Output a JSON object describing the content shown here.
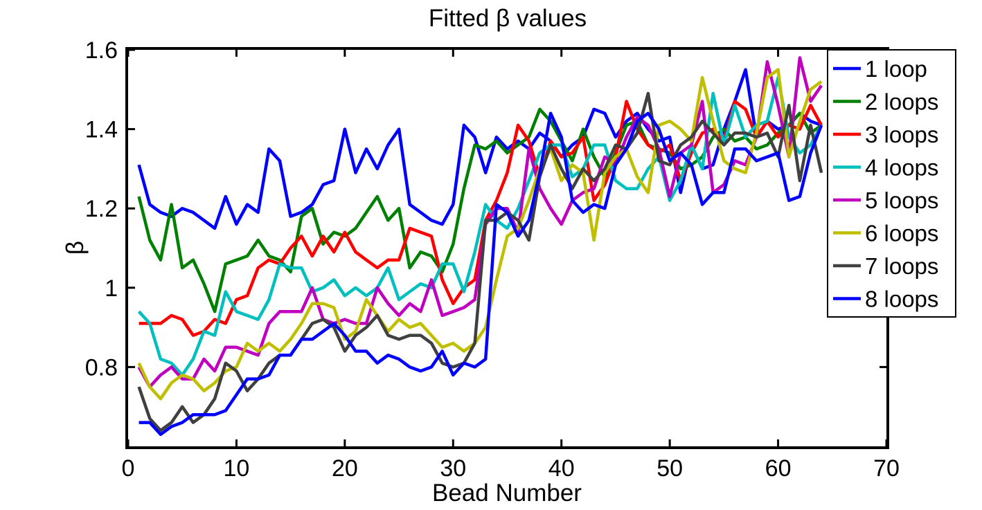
{
  "chart_data": {
    "type": "line",
    "title": "Fitted β values",
    "xlabel": "Bead Number",
    "ylabel": "β",
    "xlim": [
      0,
      70
    ],
    "ylim": [
      0.6,
      1.6
    ],
    "xticks": [
      0,
      10,
      20,
      30,
      40,
      50,
      60,
      70
    ],
    "yticks": [
      0.8,
      1,
      1.2,
      1.4,
      1.6
    ],
    "ytick_labels": [
      "0.8",
      "1",
      "1.2",
      "1.4",
      "1.6"
    ],
    "grid": false,
    "legend_position": "top-right",
    "x": [
      1,
      2,
      3,
      4,
      5,
      6,
      7,
      8,
      9,
      10,
      11,
      12,
      13,
      14,
      15,
      16,
      17,
      18,
      19,
      20,
      21,
      22,
      23,
      24,
      25,
      26,
      27,
      28,
      29,
      30,
      31,
      32,
      33,
      34,
      35,
      36,
      37,
      38,
      39,
      40,
      41,
      42,
      43,
      44,
      45,
      46,
      47,
      48,
      49,
      50,
      51,
      52,
      53,
      54,
      55,
      56,
      57,
      58,
      59,
      60,
      61,
      62,
      63,
      64
    ],
    "series": [
      {
        "name": "1 loop",
        "color": "#0000ff",
        "values": [
          1.31,
          1.21,
          1.19,
          1.18,
          1.2,
          1.19,
          1.17,
          1.15,
          1.23,
          1.16,
          1.21,
          1.19,
          1.35,
          1.32,
          1.18,
          1.19,
          1.21,
          1.26,
          1.27,
          1.4,
          1.29,
          1.35,
          1.3,
          1.36,
          1.4,
          1.21,
          1.19,
          1.17,
          1.16,
          1.21,
          1.41,
          1.38,
          1.29,
          1.38,
          1.35,
          1.37,
          1.35,
          1.39,
          1.37,
          1.33,
          1.36,
          1.38,
          1.45,
          1.44,
          1.38,
          1.42,
          1.44,
          1.4,
          1.37,
          1.38,
          1.24,
          1.36,
          1.3,
          1.31,
          1.4,
          1.47,
          1.55,
          1.38,
          1.42,
          1.4,
          1.41,
          1.44,
          1.42,
          1.41
        ]
      },
      {
        "name": "2 loops",
        "color": "#008000",
        "values": [
          1.23,
          1.12,
          1.07,
          1.21,
          1.05,
          1.07,
          1.01,
          0.94,
          1.06,
          1.07,
          1.08,
          1.12,
          1.08,
          1.07,
          1.04,
          1.18,
          1.2,
          1.11,
          1.14,
          1.13,
          1.15,
          1.19,
          1.23,
          1.17,
          1.2,
          1.05,
          1.09,
          1.08,
          1.04,
          1.11,
          1.25,
          1.36,
          1.35,
          1.37,
          1.34,
          1.36,
          1.38,
          1.45,
          1.42,
          1.37,
          1.32,
          1.4,
          1.33,
          1.28,
          1.34,
          1.41,
          1.42,
          1.36,
          1.35,
          1.34,
          1.3,
          1.31,
          1.33,
          1.38,
          1.4,
          1.37,
          1.38,
          1.35,
          1.36,
          1.39,
          1.41,
          1.44,
          1.39,
          1.41
        ]
      },
      {
        "name": "3 loops",
        "color": "#ff0000",
        "values": [
          0.91,
          0.91,
          0.91,
          0.93,
          0.92,
          0.88,
          0.89,
          0.92,
          0.91,
          0.97,
          0.98,
          1.05,
          1.07,
          1.06,
          1.1,
          1.13,
          1.08,
          1.13,
          1.09,
          1.14,
          1.09,
          1.07,
          1.05,
          1.07,
          1.07,
          1.15,
          1.14,
          1.13,
          1.02,
          0.96,
          1.0,
          1.02,
          1.17,
          1.22,
          1.29,
          1.41,
          1.37,
          1.28,
          1.37,
          1.33,
          1.34,
          1.38,
          1.22,
          1.26,
          1.33,
          1.47,
          1.4,
          1.36,
          1.34,
          1.36,
          1.27,
          1.34,
          1.39,
          1.4,
          1.37,
          1.47,
          1.45,
          1.38,
          1.42,
          1.38,
          1.41,
          1.4,
          1.46,
          1.41
        ]
      },
      {
        "name": "4 loops",
        "color": "#00bfbf",
        "values": [
          0.94,
          0.91,
          0.82,
          0.81,
          0.78,
          0.82,
          0.89,
          0.88,
          0.99,
          0.94,
          0.93,
          0.92,
          0.97,
          1.06,
          1.05,
          1.05,
          0.99,
          1.0,
          1.02,
          0.98,
          1.0,
          0.98,
          1.0,
          1.05,
          0.97,
          0.99,
          1.01,
          1.0,
          1.06,
          1.06,
          0.99,
          1.09,
          1.21,
          1.17,
          1.15,
          1.2,
          1.27,
          1.34,
          1.36,
          1.36,
          1.28,
          1.3,
          1.36,
          1.36,
          1.27,
          1.25,
          1.25,
          1.3,
          1.33,
          1.22,
          1.27,
          1.36,
          1.3,
          1.49,
          1.36,
          1.46,
          1.38,
          1.41,
          1.42,
          1.53,
          1.38,
          1.34,
          1.36,
          1.41
        ]
      },
      {
        "name": "5 loops",
        "color": "#bf00bf",
        "values": [
          0.8,
          0.75,
          0.78,
          0.8,
          0.77,
          0.77,
          0.82,
          0.79,
          0.85,
          0.85,
          0.84,
          0.83,
          0.91,
          0.94,
          0.94,
          0.94,
          1.0,
          0.92,
          0.91,
          0.92,
          0.91,
          0.91,
          1.0,
          0.96,
          0.93,
          0.96,
          0.94,
          1.02,
          0.93,
          0.94,
          0.95,
          0.97,
          1.16,
          1.2,
          1.2,
          1.14,
          1.35,
          1.25,
          1.2,
          1.16,
          1.22,
          1.24,
          1.25,
          1.33,
          1.31,
          1.38,
          1.43,
          1.41,
          1.35,
          1.23,
          1.34,
          1.36,
          1.47,
          1.24,
          1.26,
          1.32,
          1.31,
          1.38,
          1.57,
          1.46,
          1.33,
          1.58,
          1.47,
          1.51
        ]
      },
      {
        "name": "6 loops",
        "color": "#bfbf00",
        "values": [
          0.81,
          0.75,
          0.72,
          0.76,
          0.78,
          0.77,
          0.74,
          0.76,
          0.79,
          0.8,
          0.86,
          0.84,
          0.86,
          0.84,
          0.87,
          0.91,
          0.96,
          0.96,
          0.95,
          0.87,
          0.89,
          0.97,
          0.93,
          0.89,
          0.92,
          0.9,
          0.91,
          0.88,
          0.85,
          0.86,
          0.84,
          0.86,
          0.9,
          1.02,
          1.13,
          1.15,
          1.22,
          1.3,
          1.35,
          1.27,
          1.31,
          1.29,
          1.12,
          1.29,
          1.33,
          1.35,
          1.28,
          1.24,
          1.41,
          1.42,
          1.4,
          1.37,
          1.53,
          1.42,
          1.32,
          1.3,
          1.29,
          1.39,
          1.53,
          1.55,
          1.33,
          1.42,
          1.5,
          1.52
        ]
      },
      {
        "name": "7 loops",
        "color": "#404040",
        "values": [
          0.75,
          0.67,
          0.64,
          0.66,
          0.7,
          0.66,
          0.68,
          0.72,
          0.81,
          0.79,
          0.74,
          0.77,
          0.81,
          0.83,
          0.83,
          0.87,
          0.91,
          0.92,
          0.9,
          0.84,
          0.88,
          0.9,
          0.93,
          0.88,
          0.87,
          0.88,
          0.88,
          0.86,
          0.81,
          0.8,
          0.81,
          0.86,
          1.17,
          1.17,
          1.19,
          1.17,
          1.12,
          1.28,
          1.36,
          1.3,
          1.25,
          1.3,
          1.27,
          1.3,
          1.36,
          1.35,
          1.39,
          1.49,
          1.32,
          1.31,
          1.36,
          1.38,
          1.42,
          1.39,
          1.36,
          1.39,
          1.39,
          1.38,
          1.39,
          1.33,
          1.46,
          1.27,
          1.41,
          1.29
        ]
      },
      {
        "name": "8 loops",
        "color": "#0000ff",
        "values": [
          0.66,
          0.66,
          0.63,
          0.65,
          0.66,
          0.68,
          0.68,
          0.68,
          0.69,
          0.73,
          0.77,
          0.77,
          0.78,
          0.83,
          0.83,
          0.87,
          0.87,
          0.89,
          0.91,
          0.88,
          0.84,
          0.84,
          0.81,
          0.83,
          0.82,
          0.8,
          0.79,
          0.8,
          0.84,
          0.78,
          0.81,
          0.8,
          0.82,
          1.21,
          1.19,
          1.13,
          1.17,
          1.29,
          1.44,
          1.38,
          1.22,
          1.19,
          1.21,
          1.2,
          1.31,
          1.35,
          1.42,
          1.44,
          1.4,
          1.32,
          1.34,
          1.31,
          1.21,
          1.24,
          1.24,
          1.35,
          1.35,
          1.32,
          1.33,
          1.34,
          1.22,
          1.23,
          1.34,
          1.41
        ]
      }
    ]
  }
}
